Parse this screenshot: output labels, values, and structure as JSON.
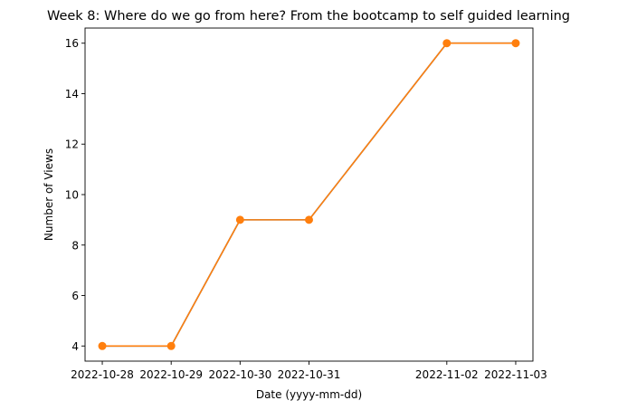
{
  "chart_data": {
    "type": "line",
    "title": "Week 8: Where do we go from here? From the bootcamp to self guided learning",
    "xlabel": "Date (yyyy-mm-dd)",
    "ylabel": "Number of Views",
    "x": [
      "2022-10-28",
      "2022-10-29",
      "2022-10-30",
      "2022-10-31",
      "2022-11-02",
      "2022-11-03"
    ],
    "y_ticks": [
      4,
      6,
      8,
      10,
      12,
      14,
      16
    ],
    "xlim": [
      "2022-10-27T18:00",
      "2022-11-03T06:00"
    ],
    "ylim": [
      3.4,
      16.6
    ],
    "series": [
      {
        "values": [
          4,
          4,
          9,
          9,
          16,
          16
        ],
        "color": "#1f77b4",
        "marker": "none"
      },
      {
        "values": [
          4,
          4,
          9,
          9,
          16,
          16
        ],
        "color": "#ff7f0e",
        "marker": "circle"
      }
    ],
    "grid": false,
    "legend": "none"
  }
}
